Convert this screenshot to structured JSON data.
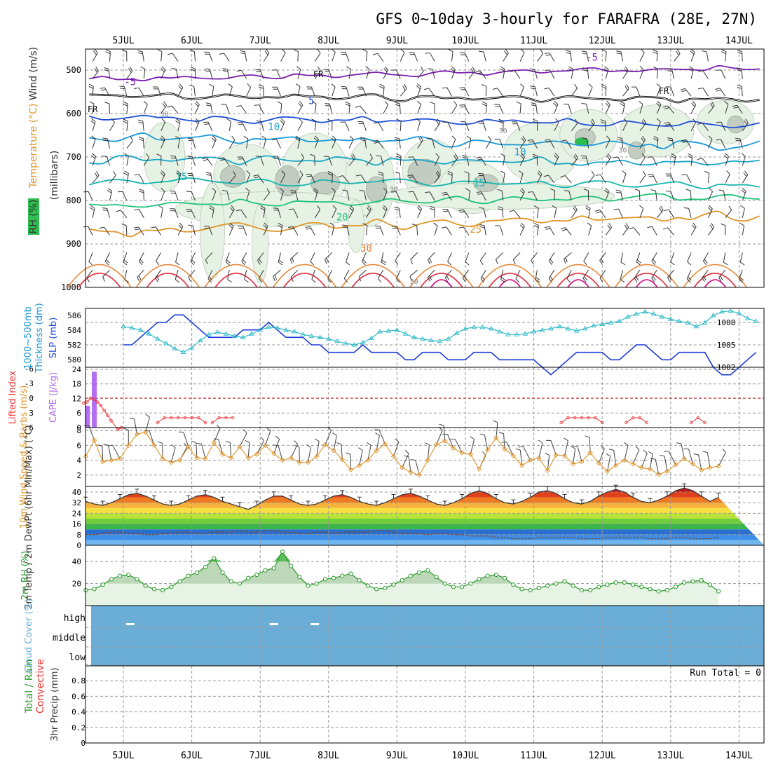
{
  "title": "GFS 0~10day 3-hourly for FARAFRA (28E, 27N)",
  "dates": [
    "5JUL",
    "6JUL",
    "7JUL",
    "8JUL",
    "9JUL",
    "10JUL",
    "11JUL",
    "12JUL",
    "13JUL",
    "14JUL"
  ],
  "colors": {
    "grid": "#999999",
    "temp_purple": "#7a1fb0",
    "temp_blue": "#1e4fd8",
    "temp_sky": "#1a9ad8",
    "temp_teal": "#16b5b0",
    "temp_green": "#1fc37a",
    "temp_orange": "#e0952a",
    "temp_red": "#e23a4a",
    "rh_fill": "#2ebd4f",
    "cloud_blue": "#6aaed8",
    "rh2m_green": "#2a9a2a"
  },
  "chart_data": [
    {
      "type": "contour",
      "name": "upper-air",
      "ylabel": "(millibars)",
      "yticks": [
        500,
        600,
        700,
        800,
        900,
        1000
      ],
      "ylim": [
        450,
        1000
      ],
      "legend_labels": [
        "Wind (m/s)",
        "Temperature (°C)",
        "RH (%)"
      ],
      "freezing_label": "FR",
      "isotherm_labels": [
        {
          "value": "-5",
          "x": 0.1,
          "p": 527
        },
        {
          "value": "-5",
          "x": 6.85,
          "p": 470
        },
        {
          "value": "5",
          "x": 2.75,
          "p": 570
        },
        {
          "value": "10",
          "x": 2.2,
          "p": 630
        },
        {
          "value": "10",
          "x": 5.8,
          "p": 688
        },
        {
          "value": "15",
          "x": 0.85,
          "p": 745
        },
        {
          "value": "15",
          "x": 5.2,
          "p": 760
        },
        {
          "value": "20",
          "x": 3.2,
          "p": 838
        },
        {
          "value": "25",
          "x": 5.15,
          "p": 866
        },
        {
          "value": "30",
          "x": 3.55,
          "p": 910
        }
      ],
      "rh_labels": [
        {
          "value": "30",
          "x": 0.6,
          "p": 602
        },
        {
          "value": "30",
          "x": 3.95,
          "p": 775
        },
        {
          "value": "30",
          "x": 5.55,
          "p": 640
        },
        {
          "value": "30",
          "x": 7.3,
          "p": 685
        },
        {
          "value": "30",
          "x": 4.25,
          "p": 987
        }
      ]
    },
    {
      "type": "line",
      "name": "slp-thickness",
      "ylabel_left": "Thickness (dm)",
      "ylabel_left2": "1000~500mb",
      "ylabel_right": "SLP (mb)",
      "thickness_ticks": [
        580,
        582,
        584,
        586
      ],
      "slp_ticks": [
        1002,
        1005,
        1008
      ],
      "x": [
        0,
        0.125,
        0.25,
        0.375,
        0.5,
        0.625,
        0.75,
        0.875,
        1,
        1.125,
        1.25,
        1.375,
        1.5,
        1.625,
        1.75,
        1.875,
        2,
        2.125,
        2.25,
        2.375,
        2.5,
        2.625,
        2.75,
        2.875,
        3,
        3.125,
        3.25,
        3.375,
        3.5,
        3.625,
        3.75,
        3.875,
        4,
        4.125,
        4.25,
        4.375,
        4.5,
        4.625,
        4.75,
        4.875,
        5,
        5.125,
        5.25,
        5.375,
        5.5,
        5.625,
        5.75,
        5.875,
        6,
        6.125,
        6.25,
        6.375,
        6.5,
        6.625,
        6.75,
        6.875,
        7,
        7.125,
        7.25,
        7.375,
        7.5,
        7.625,
        7.75,
        7.875,
        8,
        8.125,
        8.25,
        8.375,
        8.5,
        8.625,
        8.75,
        8.875,
        9,
        9.125,
        9.25
      ],
      "series": [
        {
          "name": "SLP",
          "values": [
            1005,
            1005,
            1006,
            1007,
            1008,
            1008,
            1009,
            1009,
            1008,
            1007,
            1006,
            1006,
            1006,
            1006,
            1007,
            1007,
            1007,
            1008,
            1007,
            1006,
            1006,
            1006,
            1005,
            1005,
            1004,
            1004,
            1004,
            1004,
            1005,
            1004,
            1004,
            1004,
            1004,
            1003,
            1003,
            1004,
            1004,
            1004,
            1003,
            1003,
            1003,
            1004,
            1004,
            1004,
            1003,
            1003,
            1003,
            1003,
            1003,
            1002,
            1001,
            1002,
            1003,
            1004,
            1004,
            1004,
            1004,
            1003,
            1003,
            1004,
            1005,
            1005,
            1004,
            1003,
            1003,
            1004,
            1004,
            1004,
            1004,
            1002,
            1001,
            1001,
            1002,
            1003,
            1004
          ]
        },
        {
          "name": "Thickness",
          "values": [
            584.5,
            584.3,
            584,
            583.5,
            582.8,
            582.2,
            581.5,
            581,
            581.6,
            582.6,
            583.4,
            583.7,
            583.5,
            583.2,
            583,
            583.5,
            584,
            584.4,
            584.3,
            584,
            583.8,
            583.4,
            583.2,
            583,
            582.8,
            582.5,
            582.2,
            582,
            582.3,
            582.9,
            583.8,
            583.9,
            584,
            583.5,
            583,
            582.8,
            582.6,
            582.5,
            582.8,
            583.6,
            584.2,
            584.4,
            584.4,
            584.2,
            583.8,
            583.4,
            583.4,
            583.5,
            583.8,
            584,
            584.2,
            584.5,
            584.2,
            583.9,
            584.2,
            584.6,
            584.8,
            585,
            585.2,
            585.8,
            586.2,
            586.5,
            586.2,
            585.8,
            585.5,
            585.2,
            585,
            584.5,
            585,
            586,
            586.5,
            586.6,
            586.3,
            585.6,
            585.2
          ]
        }
      ]
    },
    {
      "type": "bar",
      "name": "cape-lifted-index",
      "ylabel_left": "Lifted Index",
      "ylabel_right": "CAPE (J/kg)",
      "li_ticks": [
        "-6",
        "-3",
        "0",
        "3",
        "6"
      ],
      "cape_ticks": [
        0,
        6,
        12,
        18,
        24
      ],
      "cape_x": [
        0.05,
        0.15
      ],
      "cape_values": [
        9,
        23
      ],
      "li_x": [
        0,
        0.05,
        0.1,
        0.15,
        0.2,
        0.25,
        0.3,
        0.35,
        0.4,
        0.5,
        0.55
      ],
      "li_values": [
        1.0,
        0.8,
        0.0,
        0.2,
        0.8,
        1.5,
        2.5,
        3.5,
        4.6,
        6.4,
        6.0
      ]
    },
    {
      "type": "line",
      "name": "wind-10m",
      "ylabel": "10m Wind Speed & Barbs (m/s)",
      "yticks": [
        2,
        4,
        6,
        8
      ],
      "x": [
        0,
        0.125,
        0.25,
        0.375,
        0.5,
        0.625,
        0.75,
        0.875,
        1,
        1.125,
        1.25,
        1.375,
        1.5,
        1.625,
        1.75,
        1.875,
        2,
        2.125,
        2.25,
        2.375,
        2.5,
        2.625,
        2.75,
        2.875,
        3,
        3.125,
        3.25,
        3.375,
        3.5,
        3.625,
        3.75,
        3.875,
        4,
        4.125,
        4.25,
        4.375,
        4.5,
        4.625,
        4.75,
        4.875,
        5,
        5.125,
        5.25,
        5.375,
        5.5,
        5.625,
        5.75,
        5.875,
        6,
        6.125,
        6.25,
        6.375,
        6.5,
        6.625,
        6.75,
        6.875,
        7,
        7.125,
        7.25,
        7.375,
        7.5,
        7.625,
        7.75,
        7.875,
        8,
        8.125,
        8.25,
        8.375,
        8.5,
        8.625,
        8.75,
        8.875,
        9,
        9.125,
        9.25
      ],
      "values": [
        4.5,
        6.7,
        3.8,
        4.0,
        4.2,
        6.0,
        7.5,
        7.8,
        6.0,
        4.2,
        3.7,
        4.0,
        5.8,
        4.3,
        4.2,
        6.4,
        4.8,
        4.3,
        5.8,
        4.3,
        4.8,
        6.0,
        4.9,
        4.0,
        4.3,
        3.7,
        3.7,
        4.5,
        6.1,
        5.3,
        4.1,
        2.7,
        3.3,
        4.0,
        5.3,
        6.2,
        4.5,
        3.0,
        2.4,
        2.0,
        4.0,
        6.1,
        6.6,
        5.6,
        5.0,
        4.8,
        2.8,
        5.4,
        7.0,
        5.5,
        4.6,
        3.3,
        4.0,
        4.3,
        2.6,
        4.7,
        4.6,
        3.5,
        3.8,
        5.0,
        3.6,
        2.5,
        3.3,
        4.0,
        3.5,
        3.0,
        2.8,
        2.1,
        2.5,
        3.4,
        4.2,
        3.5,
        2.7,
        3.0,
        3.2
      ]
    },
    {
      "type": "area",
      "name": "temperature-2m",
      "ylabel": "2m Temp / 2m DewPt (6hr Min/Max) (°C)",
      "yticks": [
        0,
        8,
        16,
        24,
        32,
        40
      ],
      "x": [
        0,
        0.125,
        0.25,
        0.375,
        0.5,
        0.625,
        0.75,
        0.875,
        1,
        1.125,
        1.25,
        1.375,
        1.5,
        1.625,
        1.75,
        1.875,
        2,
        2.125,
        2.25,
        2.375,
        2.5,
        2.625,
        2.75,
        2.875,
        3,
        3.125,
        3.25,
        3.375,
        3.5,
        3.625,
        3.75,
        3.875,
        4,
        4.125,
        4.25,
        4.375,
        4.5,
        4.625,
        4.75,
        4.875,
        5,
        5.125,
        5.25,
        5.375,
        5.5,
        5.625,
        5.75,
        5.875,
        6,
        6.125,
        6.25,
        6.375,
        6.5,
        6.625,
        6.75,
        6.875,
        7,
        7.125,
        7.25,
        7.375,
        7.5,
        7.625,
        7.75,
        7.875,
        8,
        8.125,
        8.25,
        8.375,
        8.5,
        8.625,
        8.75,
        8.875,
        9,
        9.125,
        9.25
      ],
      "temp": [
        33,
        31,
        30,
        32,
        35,
        38,
        39,
        37,
        34,
        31,
        30,
        31,
        34,
        37,
        38,
        36,
        33,
        31,
        29,
        27,
        30,
        34,
        37,
        37,
        34,
        31,
        30,
        31,
        34,
        37,
        38,
        36,
        33,
        31,
        30,
        32,
        35,
        38,
        39,
        37,
        34,
        31,
        30,
        32,
        35,
        39,
        41,
        39,
        35,
        32,
        31,
        33,
        36,
        40,
        41,
        39,
        35,
        32,
        31,
        33,
        37,
        40,
        42,
        40,
        36,
        33,
        32,
        34,
        37,
        41,
        43,
        41,
        37,
        33,
        36
      ],
      "dewpt": [
        8,
        8,
        9,
        10,
        10,
        9,
        9,
        8,
        8,
        9,
        9,
        10,
        10,
        9,
        9,
        10,
        10,
        10,
        11,
        10,
        10,
        11,
        11,
        10,
        10,
        9,
        9,
        10,
        10,
        9,
        10,
        10,
        10,
        10,
        11,
        11,
        10,
        9,
        9,
        9,
        8,
        9,
        9,
        8,
        8,
        7,
        7,
        7,
        6,
        6,
        5,
        5,
        5,
        6,
        6,
        6,
        6,
        6,
        5,
        5,
        5,
        6,
        6,
        6,
        6,
        6,
        5,
        5,
        5,
        6,
        6,
        5,
        5,
        5,
        6
      ]
    },
    {
      "type": "area",
      "name": "rh-2m",
      "ylabel": "2m RH (%)",
      "yticks": [
        20,
        40
      ],
      "x": [
        0,
        0.125,
        0.25,
        0.375,
        0.5,
        0.625,
        0.75,
        0.875,
        1,
        1.125,
        1.25,
        1.375,
        1.5,
        1.625,
        1.75,
        1.875,
        2,
        2.125,
        2.25,
        2.375,
        2.5,
        2.625,
        2.75,
        2.875,
        3,
        3.125,
        3.25,
        3.375,
        3.5,
        3.625,
        3.75,
        3.875,
        4,
        4.125,
        4.25,
        4.375,
        4.5,
        4.625,
        4.75,
        4.875,
        5,
        5.125,
        5.25,
        5.375,
        5.5,
        5.625,
        5.75,
        5.875,
        6,
        6.125,
        6.25,
        6.375,
        6.5,
        6.625,
        6.75,
        6.875,
        7,
        7.125,
        7.25,
        7.375,
        7.5,
        7.625,
        7.75,
        7.875,
        8,
        8.125,
        8.25,
        8.375,
        8.5,
        8.625,
        8.75,
        8.875,
        9,
        9.125,
        9.25
      ],
      "values": [
        14,
        15,
        19,
        24,
        27,
        28,
        24,
        18,
        15,
        14,
        17,
        22,
        27,
        30,
        35,
        43,
        30,
        22,
        20,
        25,
        28,
        32,
        34,
        49,
        36,
        26,
        18,
        20,
        24,
        25,
        27,
        29,
        23,
        18,
        15,
        16,
        19,
        23,
        27,
        30,
        32,
        26,
        20,
        17,
        17,
        20,
        24,
        27,
        28,
        25,
        19,
        15,
        14,
        16,
        18,
        20,
        22,
        18,
        14,
        14,
        17,
        19,
        21,
        21,
        19,
        17,
        15,
        13,
        14,
        17,
        21,
        22,
        23,
        19,
        13
      ]
    },
    {
      "type": "heatmap",
      "name": "cloud-cover",
      "ylabel": "Cloud Cover (%)",
      "levels": [
        "high",
        "middle",
        "low"
      ],
      "clear_marks": [
        {
          "x": 0.1,
          "level": "high"
        },
        {
          "x": 2.2,
          "level": "high"
        },
        {
          "x": 2.8,
          "level": "high"
        }
      ]
    },
    {
      "type": "bar",
      "name": "precipitation",
      "ylabel": "3hr Precip (mm)",
      "legend_labels": [
        "Total / Rain",
        "Convective"
      ],
      "run_total_text": "Run Total = 0",
      "yticks": [
        "0",
        "0.2",
        "0.4",
        "0.6",
        "0.8"
      ],
      "values": []
    }
  ]
}
